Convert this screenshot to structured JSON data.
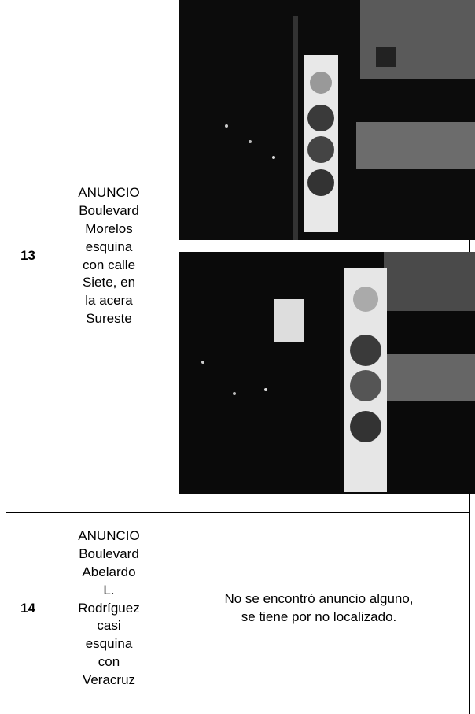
{
  "table": {
    "rows": [
      {
        "number": "13",
        "location_lines": [
          "ANUNCIO",
          "Boulevard",
          "Morelos",
          "esquina",
          "con calle",
          "Siete, en",
          "la acera",
          "Sureste"
        ],
        "result_lines": []
      },
      {
        "number": "14",
        "location_lines": [
          "ANUNCIO",
          "Boulevard",
          "Abelardo",
          "L.",
          "Rodríguez",
          "casi",
          "esquina",
          "con",
          "Veracruz"
        ],
        "result_lines": [
          "No se encontró anuncio alguno,",
          "se tiene por no localizado."
        ]
      }
    ]
  }
}
